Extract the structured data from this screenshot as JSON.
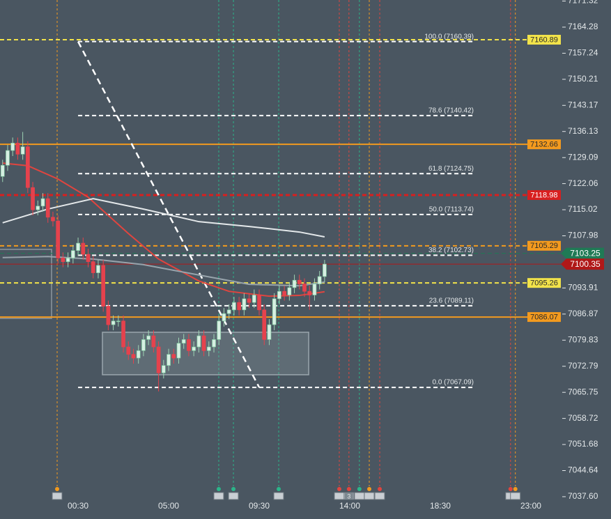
{
  "chart_data": {
    "type": "candlestick",
    "xlim": [
      -3.38,
      24.49
    ],
    "ylim": [
      7031.58,
      7171.6
    ],
    "xticks": [
      {
        "value": 0.5,
        "label": "00:30"
      },
      {
        "value": 5,
        "label": "05:00"
      },
      {
        "value": 9.5,
        "label": "09:30"
      },
      {
        "value": 14,
        "label": "14:00"
      },
      {
        "value": 18.5,
        "label": "18:30"
      },
      {
        "value": 23,
        "label": "23:00"
      }
    ],
    "yticks": [
      7171.32,
      7164.28,
      7157.24,
      7150.21,
      7143.17,
      7136.13,
      7129.09,
      7122.06,
      7115.02,
      7107.98,
      7093.91,
      7086.87,
      7079.83,
      7072.79,
      7065.75,
      7058.72,
      7051.68,
      7044.64,
      {
        "value": 7037.6,
        "label": "7037.60"
      }
    ],
    "up_color": "#d6efe2",
    "down_color": "#e5424d",
    "x": [
      -3.25,
      -3,
      -2.75,
      -2.5,
      -2.25,
      -2,
      -1.75,
      -1.5,
      -1.25,
      -1,
      -0.75,
      -0.5,
      -0.25,
      0,
      0.25,
      0.5,
      0.75,
      1,
      1.25,
      1.5,
      1.75,
      2,
      2.25,
      2.5,
      2.75,
      3,
      3.25,
      3.5,
      3.75,
      4,
      4.25,
      4.5,
      4.75,
      5,
      5.25,
      5.5,
      5.75,
      6,
      6.25,
      6.5,
      6.75,
      7,
      7.25,
      7.5,
      7.75,
      8,
      8.25,
      8.5,
      8.75,
      9,
      9.25,
      9.5,
      9.75,
      10,
      10.25,
      10.5,
      10.75,
      11,
      11.25,
      11.5,
      11.75,
      12,
      12.25,
      12.5,
      12.75
    ],
    "open": [
      7124,
      7127,
      7131,
      7133,
      7130,
      7132,
      7121,
      7115,
      7116,
      7118,
      7113,
      7112,
      7102,
      7101,
      7102,
      7104,
      7106,
      7103,
      7101,
      7098,
      7100,
      7089,
      7084,
      7085,
      7085,
      7078,
      7076,
      7075,
      7077,
      7080,
      7081,
      7078,
      7071,
      7073,
      7076,
      7075,
      7079,
      7080,
      7077,
      7078,
      7081,
      7077,
      7078,
      7080,
      7085,
      7087,
      7088,
      7090,
      7088,
      7091,
      7090,
      7092,
      7088,
      7080,
      7084,
      7091,
      7093,
      7092,
      7094,
      7096,
      7095,
      7093,
      7092,
      7095,
      7097
    ],
    "high": [
      7128.5,
      7132.5,
      7134.5,
      7134.5,
      7136,
      7133.5,
      7122.5,
      7117.5,
      7119.5,
      7119.5,
      7114.5,
      7113.5,
      7103.5,
      7103.5,
      7105.5,
      7107.5,
      7107.5,
      7104.5,
      7102.5,
      7101.5,
      7101.5,
      7090.5,
      7086.5,
      7086.5,
      7086.5,
      7079.5,
      7077.5,
      7078.5,
      7081.5,
      7082.5,
      7082.5,
      7079.5,
      7074.5,
      7077.5,
      7077.5,
      7080.5,
      7081.5,
      7081.5,
      7079.5,
      7082.5,
      7082.5,
      7079.5,
      7081.5,
      7086.5,
      7088.5,
      7089.5,
      7091.5,
      7091.5,
      7092.5,
      7092.5,
      7093.5,
      7093.5,
      7089.5,
      7085.5,
      7092.5,
      7094.5,
      7094.5,
      7095.5,
      7097.5,
      7097.5,
      7096.5,
      7094.5,
      7096.5,
      7098.5,
      7101.5
    ],
    "low": [
      7122.5,
      7125.5,
      7129.5,
      7128.5,
      7128.5,
      7119.5,
      7113.5,
      7113.5,
      7114.5,
      7111.5,
      7110.5,
      7100.5,
      7099.5,
      7099.5,
      7100.5,
      7102.5,
      7101.5,
      7099.5,
      7096.5,
      7096.5,
      7087.5,
      7082.5,
      7082.5,
      7083.5,
      7076.5,
      7074.5,
      7073.5,
      7073.5,
      7075.5,
      7078.5,
      7076.5,
      7066,
      7069.5,
      7071.5,
      7073.5,
      7073.5,
      7077.5,
      7075.5,
      7075.5,
      7076.5,
      7075.5,
      7075.5,
      7076.5,
      7078.5,
      7083.5,
      7085.5,
      7086.5,
      7086.5,
      7086.5,
      7088.5,
      7088.5,
      7086.5,
      7078.5,
      7078.5,
      7082.5,
      7089.5,
      7090.5,
      7090.5,
      7092.5,
      7093.5,
      7091.5,
      7088,
      7090.5,
      7093.5,
      7095.5
    ],
    "close": [
      7127,
      7131,
      7133,
      7130,
      7132,
      7121,
      7115,
      7116,
      7118,
      7113,
      7112,
      7102,
      7101,
      7102,
      7104,
      7106,
      7103,
      7101,
      7098,
      7100,
      7089,
      7084,
      7085,
      7085,
      7078,
      7076,
      7075,
      7077,
      7080,
      7081,
      7078,
      7071,
      7073,
      7076,
      7075,
      7079,
      7080,
      7077,
      7078,
      7081,
      7077,
      7078,
      7080,
      7085,
      7087,
      7088,
      7090,
      7088,
      7091,
      7090,
      7092,
      7088,
      7080,
      7084,
      7091,
      7093,
      7092,
      7094,
      7096,
      7095,
      7093,
      7092,
      7095,
      7097,
      7100.35
    ],
    "overlays": [
      {
        "color": "#e0453f",
        "x": [
          -3.25,
          -2,
          -0.5,
          1,
          3,
          4.5,
          6.5,
          8,
          10,
          11.5,
          12.75
        ],
        "values": [
          7127.6,
          7126.9,
          7123.3,
          7118.4,
          7108.6,
          7101.7,
          7095.8,
          7093.0,
          7091.7,
          7091.9,
          7092.9
        ]
      },
      {
        "color": "#e4e8ea",
        "x": [
          -3.25,
          -1,
          1.25,
          3.75,
          6.5,
          9,
          11.5,
          12.75
        ],
        "values": [
          7111.5,
          7115.2,
          7118.0,
          7115.2,
          7111.8,
          7110.5,
          7109.0,
          7107.7
        ]
      },
      {
        "color": "#98a4ac",
        "x": [
          -3.25,
          -1,
          1.25,
          3.75,
          6.5,
          9,
          11.5,
          12.75
        ],
        "values": [
          7102.1,
          7102.4,
          7101.7,
          7100.2,
          7097.4,
          7094.9,
          7094.5,
          7095.5
        ]
      }
    ],
    "zone": {
      "x": [
        1.71,
        11.96
      ],
      "values": [
        7081.96,
        7070.5
      ]
    },
    "fib": {
      "x": [
        0.5,
        9.5
      ],
      "levels": [
        {
          "label": "100.0 (7160.39)",
          "value": 7160.39
        },
        {
          "label": "78.6 (7140.42)",
          "value": 7140.42
        },
        {
          "label": "61.8 (7124.75)",
          "value": 7124.75
        },
        {
          "label": "50.0 (7113.74)",
          "value": 7113.74
        },
        {
          "label": "38.2 (7102.73)",
          "value": 7102.73
        },
        {
          "label": "23.6 (7089.11)",
          "value": 7089.11
        },
        {
          "label": "0.0 (7067.09)",
          "value": 7067.09
        }
      ]
    },
    "levels": [
      {
        "value": 7160.89,
        "color": "#f2e34a",
        "dashed": true,
        "side": "plot"
      },
      {
        "value": 7132.66,
        "color": "#f39a1e",
        "dashed": false,
        "side": "plot"
      },
      {
        "value": 7118.98,
        "color": "#d81f1f",
        "dashed": true,
        "side": "plot"
      },
      {
        "value": 7105.29,
        "color": "#f39a1e",
        "dashed": true,
        "side": "plot"
      },
      {
        "value": 7095.26,
        "color": "#f2e34a",
        "dashed": true,
        "side": "plot"
      },
      {
        "value": 7086.07,
        "color": "#f39a1e",
        "dashed": false,
        "side": "plot"
      },
      {
        "value": 7103.25,
        "color": "#1f7a55",
        "dashed": true,
        "side": "axis"
      },
      {
        "value": 7100.35,
        "color": "#b01818",
        "dashed": false,
        "side": "axis"
      }
    ],
    "events": [
      {
        "x": -0.54,
        "color": "#f39a1e"
      },
      {
        "x": 7.49,
        "color": "#2bb58a"
      },
      {
        "x": 8.22,
        "color": "#2bb58a"
      },
      {
        "x": 10.47,
        "color": "#2bb58a"
      },
      {
        "x": 13.48,
        "color": "#e0453f"
      },
      {
        "x": 13.96,
        "color": "#e0453f"
      },
      {
        "x": 14.48,
        "color": "#2bb58a"
      },
      {
        "x": 14.97,
        "color": "#f39a1e"
      },
      {
        "x": 15.49,
        "color": "#e0453f"
      },
      {
        "x": 21.99,
        "color": "#e0453f"
      },
      {
        "x": 22.23,
        "color": "#f39a1e"
      }
    ],
    "event_badge": "3"
  }
}
